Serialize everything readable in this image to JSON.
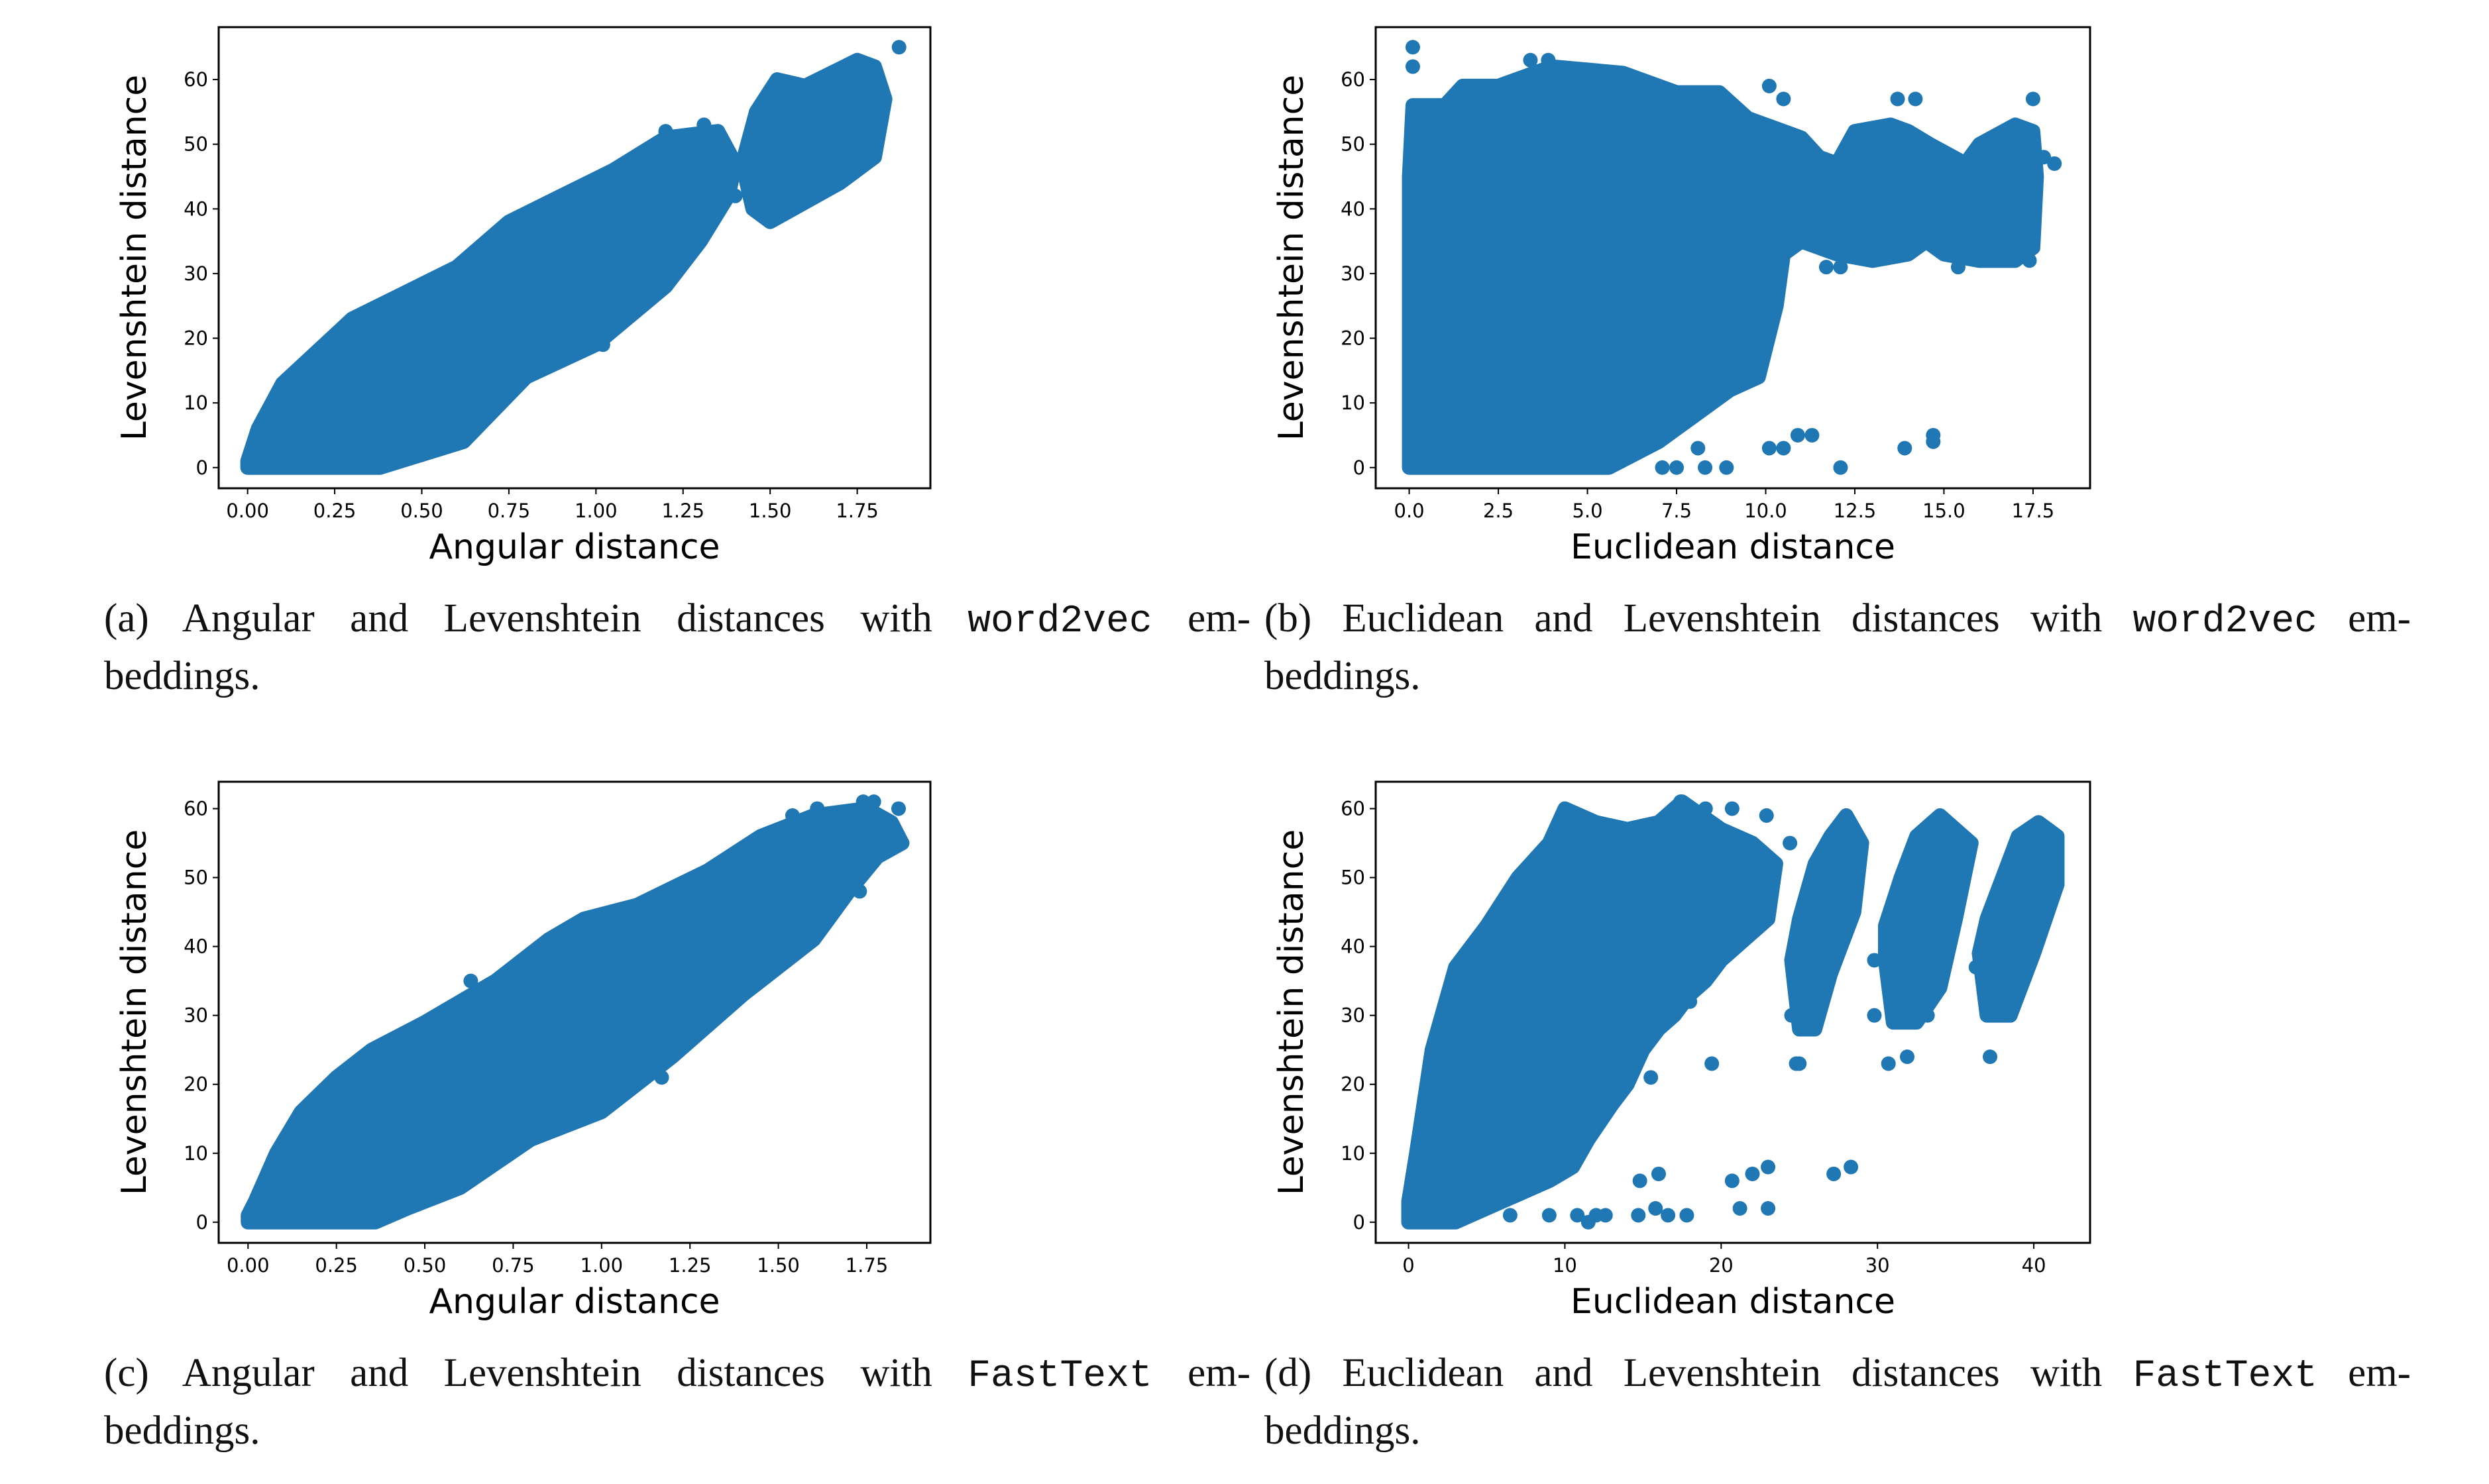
{
  "colors": {
    "marker": "#1f77b4",
    "axes": "#000000"
  },
  "chart_data": [
    {
      "id": "a",
      "type": "scatter",
      "xlabel": "Angular distance",
      "ylabel": "Levenshtein distance",
      "xlim": [
        -0.083,
        1.96
      ],
      "ylim": [
        -3.2,
        68.1
      ],
      "xticks": [
        0,
        0.25,
        0.5,
        0.75,
        1.0,
        1.25,
        1.5,
        1.75
      ],
      "xtick_labels": [
        "0.00",
        "0.25",
        "0.50",
        "0.75",
        "1.00",
        "1.25",
        "1.50",
        "1.75"
      ],
      "yticks": [
        0,
        10,
        20,
        30,
        40,
        50,
        60
      ],
      "ytick_labels": [
        "0",
        "10",
        "20",
        "30",
        "40",
        "50",
        "60"
      ],
      "grid": false,
      "dense_regions": [
        [
          [
            0,
            0
          ],
          [
            0.38,
            0
          ],
          [
            0.5,
            2
          ],
          [
            0.62,
            4
          ],
          [
            0.8,
            14
          ],
          [
            1.0,
            19
          ],
          [
            1.2,
            28
          ],
          [
            1.3,
            35
          ],
          [
            1.38,
            42
          ],
          [
            1.4,
            47
          ],
          [
            1.35,
            52
          ],
          [
            1.2,
            51
          ],
          [
            1.05,
            46
          ],
          [
            0.9,
            42
          ],
          [
            0.75,
            38
          ],
          [
            0.6,
            31
          ],
          [
            0.45,
            27
          ],
          [
            0.3,
            23
          ],
          [
            0.2,
            18
          ],
          [
            0.1,
            13
          ],
          [
            0.03,
            6
          ],
          [
            0,
            1
          ]
        ],
        [
          [
            1.45,
            40
          ],
          [
            1.5,
            38
          ],
          [
            1.6,
            41
          ],
          [
            1.7,
            44
          ],
          [
            1.8,
            48
          ],
          [
            1.83,
            57
          ],
          [
            1.8,
            62
          ],
          [
            1.75,
            63
          ],
          [
            1.6,
            59
          ],
          [
            1.52,
            60
          ],
          [
            1.46,
            55
          ],
          [
            1.42,
            47
          ]
        ]
      ],
      "points": [
        [
          1.87,
          65
        ],
        [
          1.02,
          19
        ],
        [
          0.5,
          2
        ],
        [
          0.61,
          4
        ],
        [
          1.31,
          53
        ],
        [
          1.2,
          52
        ],
        [
          1.4,
          42
        ],
        [
          1.76,
          48
        ]
      ]
    },
    {
      "id": "b",
      "type": "scatter",
      "xlabel": "Euclidean distance",
      "ylabel": "Levenshtein distance",
      "xlim": [
        -0.94,
        19.1
      ],
      "ylim": [
        -3.2,
        68.1
      ],
      "xticks": [
        0,
        2.5,
        5,
        7.5,
        10,
        12.5,
        15,
        17.5
      ],
      "xtick_labels": [
        "0.0",
        "2.5",
        "5.0",
        "7.5",
        "10.0",
        "12.5",
        "15.0",
        "17.5"
      ],
      "yticks": [
        0,
        10,
        20,
        30,
        40,
        50,
        60
      ],
      "ytick_labels": [
        "0",
        "10",
        "20",
        "30",
        "40",
        "50",
        "60"
      ],
      "grid": false,
      "dense_regions": [
        [
          [
            0,
            0
          ],
          [
            5.6,
            0
          ],
          [
            7,
            4
          ],
          [
            8,
            8
          ],
          [
            9,
            12
          ],
          [
            9.8,
            14
          ],
          [
            10.3,
            25
          ],
          [
            10.5,
            33
          ],
          [
            11,
            35
          ],
          [
            12,
            33
          ],
          [
            13,
            32
          ],
          [
            14,
            33
          ],
          [
            14.5,
            35
          ],
          [
            15,
            33
          ],
          [
            16,
            32
          ],
          [
            17,
            32
          ],
          [
            17.5,
            34
          ],
          [
            17.6,
            45
          ],
          [
            17.5,
            52
          ],
          [
            17,
            53
          ],
          [
            16,
            50
          ],
          [
            15.6,
            47
          ],
          [
            14.6,
            50
          ],
          [
            14,
            52
          ],
          [
            13.5,
            53
          ],
          [
            12.5,
            52
          ],
          [
            12,
            47
          ],
          [
            11.5,
            48
          ],
          [
            11,
            51
          ],
          [
            10,
            53
          ],
          [
            9.5,
            54
          ],
          [
            8.7,
            58
          ],
          [
            7.5,
            58
          ],
          [
            6,
            61
          ],
          [
            4,
            62
          ],
          [
            2.5,
            59
          ],
          [
            1.5,
            59
          ],
          [
            1,
            56
          ],
          [
            0.1,
            56
          ],
          [
            0,
            45
          ]
        ]
      ],
      "points": [
        [
          0.1,
          65
        ],
        [
          0.1,
          62
        ],
        [
          10.1,
          59
        ],
        [
          10.5,
          57
        ],
        [
          13.7,
          57
        ],
        [
          14.2,
          57
        ],
        [
          17.5,
          57
        ],
        [
          18.1,
          47
        ],
        [
          17.8,
          48
        ],
        [
          7.1,
          0
        ],
        [
          7.5,
          0
        ],
        [
          8.3,
          0
        ],
        [
          8.9,
          0
        ],
        [
          8.1,
          3
        ],
        [
          10.1,
          3
        ],
        [
          10.5,
          3
        ],
        [
          10.9,
          5
        ],
        [
          11.3,
          5
        ],
        [
          12.1,
          0
        ],
        [
          13.9,
          3
        ],
        [
          14.7,
          5
        ],
        [
          14.7,
          4
        ],
        [
          3.4,
          63
        ],
        [
          3.9,
          63
        ],
        [
          0.3,
          38
        ],
        [
          0.6,
          45
        ],
        [
          11.7,
          31
        ],
        [
          12.1,
          31
        ],
        [
          15.4,
          31
        ],
        [
          17.4,
          32
        ]
      ]
    },
    {
      "id": "c",
      "type": "scatter",
      "xlabel": "Angular distance",
      "ylabel": "Levenshtein distance",
      "xlim": [
        -0.083,
        1.93
      ],
      "ylim": [
        -3.0,
        63.9
      ],
      "xticks": [
        0,
        0.25,
        0.5,
        0.75,
        1.0,
        1.25,
        1.5,
        1.75
      ],
      "xtick_labels": [
        "0.00",
        "0.25",
        "0.50",
        "0.75",
        "1.00",
        "1.25",
        "1.50",
        "1.75"
      ],
      "yticks": [
        0,
        10,
        20,
        30,
        40,
        50,
        60
      ],
      "ytick_labels": [
        "0",
        "10",
        "20",
        "30",
        "40",
        "50",
        "60"
      ],
      "grid": false,
      "dense_regions": [
        [
          [
            0,
            0
          ],
          [
            0.36,
            0
          ],
          [
            0.45,
            2
          ],
          [
            0.6,
            5
          ],
          [
            0.8,
            12
          ],
          [
            1.0,
            16
          ],
          [
            1.2,
            24
          ],
          [
            1.4,
            33
          ],
          [
            1.6,
            41
          ],
          [
            1.7,
            48
          ],
          [
            1.78,
            53
          ],
          [
            1.85,
            55
          ],
          [
            1.82,
            58
          ],
          [
            1.75,
            60
          ],
          [
            1.6,
            59
          ],
          [
            1.45,
            56
          ],
          [
            1.3,
            51
          ],
          [
            1.1,
            46
          ],
          [
            0.95,
            44
          ],
          [
            0.85,
            41
          ],
          [
            0.7,
            35
          ],
          [
            0.5,
            29
          ],
          [
            0.35,
            25
          ],
          [
            0.25,
            21
          ],
          [
            0.15,
            16
          ],
          [
            0.08,
            10
          ],
          [
            0.02,
            3
          ],
          [
            0,
            1
          ]
        ]
      ],
      "points": [
        [
          1.74,
          61
        ],
        [
          1.77,
          61
        ],
        [
          1.84,
          60
        ],
        [
          0.63,
          35
        ],
        [
          1.17,
          21
        ],
        [
          1.73,
          48
        ],
        [
          1.85,
          55
        ],
        [
          1.54,
          59
        ],
        [
          1.61,
          60
        ]
      ]
    },
    {
      "id": "d",
      "type": "scatter",
      "xlabel": "Euclidean distance",
      "ylabel": "Levenshtein distance",
      "xlim": [
        -2.1,
        43.6
      ],
      "ylim": [
        -3.0,
        63.9
      ],
      "xticks": [
        0,
        10,
        20,
        30,
        40
      ],
      "xtick_labels": [
        "0",
        "10",
        "20",
        "30",
        "40"
      ],
      "yticks": [
        0,
        10,
        20,
        30,
        40,
        50,
        60
      ],
      "ytick_labels": [
        "0",
        "10",
        "20",
        "30",
        "40",
        "50",
        "60"
      ],
      "grid": false,
      "dense_regions": [
        [
          [
            0,
            0
          ],
          [
            3,
            0
          ],
          [
            5,
            2
          ],
          [
            7,
            4
          ],
          [
            9,
            6
          ],
          [
            10.5,
            8
          ],
          [
            11.5,
            12
          ],
          [
            13,
            17
          ],
          [
            14,
            20
          ],
          [
            15,
            25
          ],
          [
            16,
            28
          ],
          [
            17,
            30
          ],
          [
            18,
            33
          ],
          [
            19,
            35
          ],
          [
            20,
            38
          ],
          [
            21.5,
            41
          ],
          [
            23,
            44
          ],
          [
            23.5,
            52
          ],
          [
            22,
            55
          ],
          [
            20,
            57
          ],
          [
            17.5,
            61
          ],
          [
            16,
            58
          ],
          [
            14,
            57
          ],
          [
            12,
            58
          ],
          [
            10,
            60
          ],
          [
            9,
            55
          ],
          [
            7,
            50
          ],
          [
            5,
            43
          ],
          [
            3,
            37
          ],
          [
            1.5,
            25
          ],
          [
            0.5,
            10
          ],
          [
            0,
            3
          ]
        ],
        [
          [
            24.5,
            38
          ],
          [
            25,
            28
          ],
          [
            26,
            28
          ],
          [
            27,
            36
          ],
          [
            28.5,
            45
          ],
          [
            29,
            55
          ],
          [
            28,
            59
          ],
          [
            27,
            56
          ],
          [
            26,
            52
          ],
          [
            25,
            44
          ]
        ],
        [
          [
            30.5,
            38
          ],
          [
            31,
            29
          ],
          [
            32.5,
            29
          ],
          [
            34,
            34
          ],
          [
            35,
            44
          ],
          [
            36,
            55
          ],
          [
            34,
            59
          ],
          [
            32.5,
            56
          ],
          [
            31.5,
            50
          ],
          [
            30.5,
            43
          ]
        ],
        [
          [
            36.5,
            39
          ],
          [
            37,
            30
          ],
          [
            38.5,
            30
          ],
          [
            40,
            39
          ],
          [
            41.5,
            49
          ],
          [
            41.5,
            56
          ],
          [
            40.3,
            58
          ],
          [
            39,
            56
          ],
          [
            38,
            50
          ],
          [
            37,
            44
          ]
        ]
      ],
      "points": [
        [
          19.4,
          23
        ],
        [
          24.8,
          23
        ],
        [
          25,
          23
        ],
        [
          30.7,
          23
        ],
        [
          31.9,
          24
        ],
        [
          37.2,
          24
        ],
        [
          14.8,
          6
        ],
        [
          16,
          7
        ],
        [
          20.7,
          6
        ],
        [
          22,
          7
        ],
        [
          23,
          8
        ],
        [
          27.2,
          7
        ],
        [
          28.3,
          8
        ],
        [
          14.7,
          1
        ],
        [
          15.8,
          2
        ],
        [
          16.6,
          1
        ],
        [
          17.8,
          1
        ],
        [
          21.2,
          2
        ],
        [
          23,
          2
        ],
        [
          10.8,
          1
        ],
        [
          11.5,
          0
        ],
        [
          12,
          1
        ],
        [
          12.6,
          1
        ],
        [
          9,
          1
        ],
        [
          6.5,
          1
        ],
        [
          20.7,
          60
        ],
        [
          19,
          60
        ],
        [
          17.4,
          61
        ],
        [
          22.9,
          59
        ],
        [
          24.4,
          55
        ],
        [
          29.8,
          38
        ],
        [
          36.3,
          37
        ],
        [
          24.5,
          30
        ],
        [
          29.8,
          30
        ],
        [
          33.2,
          30
        ],
        [
          38.4,
          30
        ],
        [
          15.5,
          21
        ],
        [
          18,
          32
        ]
      ]
    }
  ],
  "captions": [
    {
      "l1_before": "(a) Angular and Levenshtein distances with ",
      "code": "word2vec",
      "l1_after": " em-",
      "l2": "beddings."
    },
    {
      "l1_before": "(b) Euclidean and Levenshtein distances with ",
      "code": "word2vec",
      "l1_after": " em-",
      "l2": "beddings."
    },
    {
      "l1_before": "(c) Angular and Levenshtein distances with ",
      "code": "FastText",
      "l1_after": " em-",
      "l2": "beddings."
    },
    {
      "l1_before": "(d) Euclidean and Levenshtein distances with ",
      "code": "FastText",
      "l1_after": " em-",
      "l2": "beddings."
    }
  ]
}
